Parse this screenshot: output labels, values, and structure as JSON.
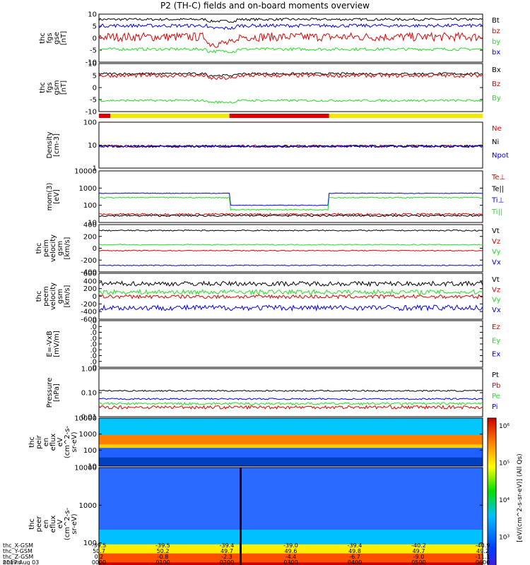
{
  "title": "P2 (TH-C) fields and on-board moments overview",
  "colors": {
    "black": "#000000",
    "red": "#e00000",
    "green": "#22dd22",
    "blue": "#0000ee",
    "yellow": "#f5e800"
  },
  "panels": [
    {
      "id": "fgs_gse",
      "ylabel": [
        "thc",
        "fgs",
        "gse",
        "[nT]"
      ],
      "ticks": [
        "10",
        "5",
        "0",
        "-5",
        "-10"
      ],
      "ylim": [
        -10,
        10
      ],
      "series": [
        {
          "name": "Bt",
          "color": "black",
          "level": 7.8,
          "noise": 0.5
        },
        {
          "name": "bz",
          "color": "red",
          "level": 0.5,
          "noise": 1.8
        },
        {
          "name": "by",
          "color": "green",
          "level": -4.6,
          "noise": 0.6
        },
        {
          "name": "bx",
          "color": "blue",
          "level": 5.2,
          "noise": 0.7
        }
      ]
    },
    {
      "id": "fgs_gsm",
      "ylabel": [
        "thc",
        "fgs",
        "gsm",
        "[nT]"
      ],
      "ticks": [
        "10",
        "5",
        "0",
        "-5",
        "-10"
      ],
      "ylim": [
        -13,
        13
      ],
      "series": [
        {
          "name": "Bx",
          "color": "black",
          "level": 7.5,
          "noise": 0.6
        },
        {
          "name": "Bz",
          "color": "red",
          "level": 6.5,
          "noise": 1.0
        },
        {
          "name": "By",
          "color": "green",
          "level": -7.0,
          "noise": 0.6
        }
      ]
    },
    {
      "id": "density",
      "ylabel": [
        "Density",
        "[cm-3]"
      ],
      "ticks": [
        "100",
        "10",
        "1"
      ],
      "log": true,
      "ylim": [
        1,
        100
      ],
      "series": [
        {
          "name": "Ne",
          "color": "red",
          "level": 9,
          "noise": 1.2
        },
        {
          "name": "Ni",
          "color": "black",
          "level": 9,
          "noise": 1.0
        },
        {
          "name": "Npot",
          "color": "blue",
          "level": 9,
          "noise": 1.0
        }
      ]
    },
    {
      "id": "temp",
      "ylabel": [
        "mom(3)",
        "[eV]"
      ],
      "ticks": [
        "10000",
        "1000",
        "100",
        "10"
      ],
      "log": true,
      "ylim": [
        10,
        10000
      ],
      "series": [
        {
          "name": "Te⊥",
          "color": "red",
          "level": 30,
          "noise": 4
        },
        {
          "name": "Te||",
          "color": "black",
          "level": 25,
          "noise": 3
        },
        {
          "name": "Ti⊥",
          "color": "blue",
          "level": 500,
          "noise": 20
        },
        {
          "name": "Ti||",
          "color": "green",
          "level": 280,
          "noise": 20
        }
      ]
    },
    {
      "id": "peim_vel",
      "ylabel": [
        "thc",
        "peim",
        "velocity",
        "gsm",
        "[km/s]"
      ],
      "ticks": [
        "400",
        "200",
        "0",
        "-200",
        "-400"
      ],
      "ylim": [
        -400,
        400
      ],
      "series": [
        {
          "name": "Vt",
          "color": "black",
          "level": 300,
          "noise": 10
        },
        {
          "name": "Vz",
          "color": "red",
          "level": -40,
          "noise": 8
        },
        {
          "name": "Vy",
          "color": "green",
          "level": 60,
          "noise": 8
        },
        {
          "name": "Vx",
          "color": "blue",
          "level": -290,
          "noise": 8
        }
      ]
    },
    {
      "id": "peem_vel",
      "ylabel": [
        "thc",
        "peem",
        "velocity",
        "gsm",
        "[km/s]"
      ],
      "ticks": [
        "600",
        "400",
        "200",
        "0",
        "-200",
        "-400",
        "-600"
      ],
      "ylim": [
        -600,
        600
      ],
      "series": [
        {
          "name": "Vt",
          "color": "black",
          "level": 330,
          "noise": 60
        },
        {
          "name": "Vz",
          "color": "red",
          "level": -10,
          "noise": 50
        },
        {
          "name": "Vy",
          "color": "green",
          "level": 110,
          "noise": 60
        },
        {
          "name": "Vx",
          "color": "blue",
          "level": -300,
          "noise": 70
        }
      ]
    },
    {
      "id": "efield",
      "ylabel": [
        "E=-VxB",
        "[mV/m]"
      ],
      "ticks": [
        ".0",
        ".0",
        ".0",
        ".0",
        ".0",
        ".0",
        ".0",
        ".0",
        ".0"
      ],
      "ylim": [
        0,
        1
      ],
      "series": [
        {
          "name": "Ez",
          "color": "red"
        },
        {
          "name": "Ey",
          "color": "green"
        },
        {
          "name": "Ex",
          "color": "blue"
        }
      ]
    },
    {
      "id": "pressure",
      "ylabel": [
        "Pressure",
        "[nPa]"
      ],
      "ticks": [
        "1.00",
        "0.10",
        "0.01"
      ],
      "log": true,
      "ylim": [
        0.01,
        1
      ],
      "series": [
        {
          "name": "Pt",
          "color": "black",
          "level": 0.12,
          "noise": 0.008
        },
        {
          "name": "Pb",
          "color": "red",
          "level": 0.025,
          "noise": 0.004
        },
        {
          "name": "Pe",
          "color": "green",
          "level": 0.035,
          "noise": 0.004
        },
        {
          "name": "Pi",
          "color": "blue",
          "level": 0.055,
          "noise": 0.004
        }
      ]
    },
    {
      "id": "peir",
      "ylabel": [
        "thc",
        "peir",
        "en",
        "eflux",
        "eV",
        "(cm^2-s-",
        "sr-eV)"
      ],
      "ticks": [
        "10000",
        "1000",
        "100",
        "10"
      ],
      "spectrogram": true
    },
    {
      "id": "peer",
      "ylabel": [
        "thc",
        "peer",
        "en",
        "eflux",
        "eV",
        "(cm^2-s-",
        "sr-eV)"
      ],
      "ticks": [
        "10000",
        "1000",
        "100",
        "10"
      ],
      "spectrogram": true
    }
  ],
  "colorbar": {
    "label": "[eV/(cm^2-s-sr-eV)] (All Qs)",
    "ticks": [
      "10⁶",
      "10⁵",
      "10⁴",
      "10³",
      "10²"
    ]
  },
  "mode_bar": {
    "segments": [
      {
        "color": "red",
        "from": 0.0,
        "to": 0.03
      },
      {
        "color": "yellow",
        "from": 0.03,
        "to": 0.34
      },
      {
        "color": "red",
        "from": 0.34,
        "to": 0.6
      },
      {
        "color": "yellow",
        "from": 0.6,
        "to": 1.0
      }
    ]
  },
  "footer": {
    "rows": [
      {
        "label": "thc_X-GSM",
        "values": [
          "-39.5",
          "-39.5",
          "-39.4",
          "-39.0",
          "-39.4",
          "-40.2",
          "-40.9"
        ]
      },
      {
        "label": "thc_Y-GSM",
        "values": [
          "50.7",
          "50.2",
          "49.7",
          "49.6",
          "49.8",
          "49.7",
          "49.2"
        ]
      },
      {
        "label": "thc_Z-GSM",
        "values": [
          "0.2",
          "-0.8",
          "-2.3",
          "-4.4",
          "-6.7",
          "-9.0",
          "-11.1"
        ]
      },
      {
        "label": "hhmm",
        "values": [
          "0000",
          "0100",
          "0200",
          "0300",
          "0400",
          "0500",
          "0600"
        ]
      }
    ],
    "date": "2017 Aug 03"
  }
}
